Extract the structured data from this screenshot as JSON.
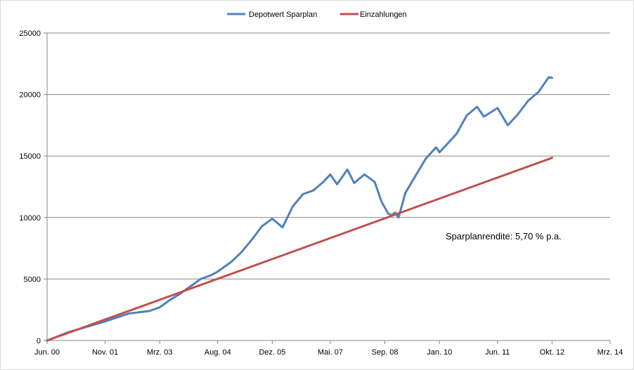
{
  "chart_data": {
    "type": "line",
    "title": "",
    "xlabel": "",
    "ylabel": "",
    "ylim": [
      0,
      25000
    ],
    "y_ticks": [
      0,
      5000,
      10000,
      15000,
      20000,
      25000
    ],
    "y_tick_labels": [
      "0",
      "5000",
      "10000",
      "15000",
      "20000",
      "25000"
    ],
    "x_ticks": [
      "2000-06",
      "2001-11",
      "2003-03",
      "2004-08",
      "2005-12",
      "2007-05",
      "2008-09",
      "2010-01",
      "2011-06",
      "2012-10",
      "2014-03"
    ],
    "x_tick_labels": [
      "Jun. 00",
      "Nov. 01",
      "Mrz. 03",
      "Aug. 04",
      "Dez. 05",
      "Mai. 07",
      "Sep. 08",
      "Jan. 10",
      "Jun. 11",
      "Okt. 12",
      "Mrz. 14"
    ],
    "grid": "horizontal",
    "legend_position": "top",
    "annotation": "Sparplanrendite: 5,70 % p.a.",
    "series": [
      {
        "name": "Depotwert Sparplan",
        "color": "#4f81bd",
        "x": [
          "2000-06",
          "2000-12",
          "2001-06",
          "2001-11",
          "2002-06",
          "2002-12",
          "2003-03",
          "2003-06",
          "2003-09",
          "2003-12",
          "2004-03",
          "2004-06",
          "2004-08",
          "2004-12",
          "2005-03",
          "2005-06",
          "2005-09",
          "2005-12",
          "2006-03",
          "2006-06",
          "2006-09",
          "2006-12",
          "2007-03",
          "2007-05",
          "2007-07",
          "2007-10",
          "2007-12",
          "2008-03",
          "2008-06",
          "2008-08",
          "2008-09",
          "2008-10",
          "2008-11",
          "2008-12",
          "2009-01",
          "2009-02",
          "2009-03",
          "2009-06",
          "2009-09",
          "2009-12",
          "2010-01",
          "2010-06",
          "2010-09",
          "2010-12",
          "2011-02",
          "2011-06",
          "2011-09",
          "2011-12",
          "2012-03",
          "2012-06",
          "2012-09",
          "2012-10"
        ],
        "values": [
          0,
          650,
          1150,
          1550,
          2200,
          2400,
          2700,
          3300,
          3800,
          4400,
          5000,
          5300,
          5600,
          6400,
          7200,
          8200,
          9300,
          9900,
          9200,
          10900,
          11900,
          12200,
          12900,
          13500,
          12700,
          13900,
          12800,
          13500,
          12900,
          11300,
          10800,
          10300,
          10200,
          10400,
          10000,
          11000,
          12000,
          13400,
          14800,
          15700,
          15300,
          16800,
          18300,
          19000,
          18200,
          18900,
          17500,
          18400,
          19500,
          20200,
          21400,
          21350
        ]
      },
      {
        "name": "Einzahlungen",
        "color": "#c0504d",
        "x": [
          "2000-06",
          "2012-10"
        ],
        "values": [
          0,
          14850
        ]
      }
    ]
  }
}
